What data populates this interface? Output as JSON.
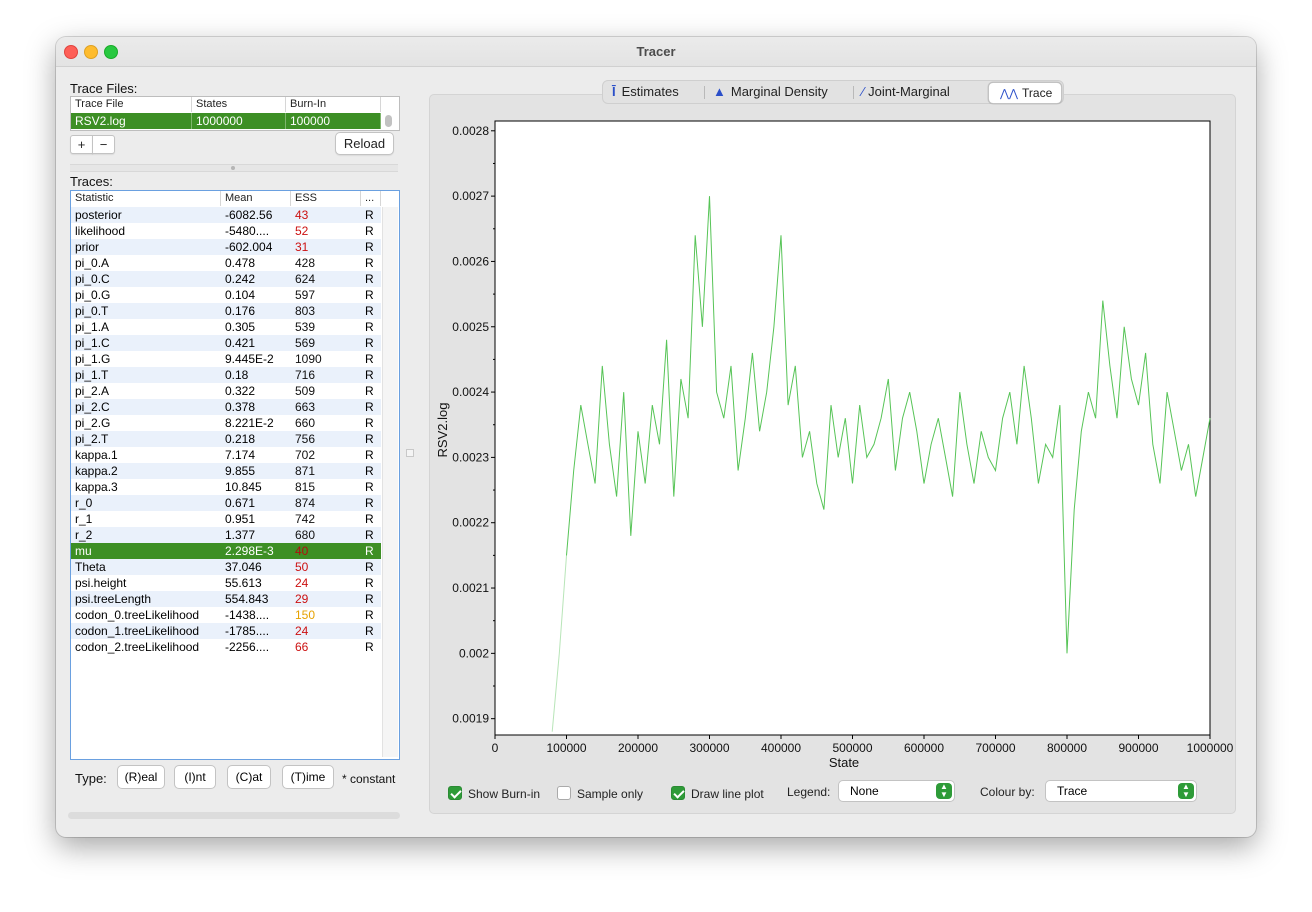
{
  "window": {
    "title": "Tracer"
  },
  "trace_files": {
    "label": "Trace Files:",
    "columns": [
      "Trace File",
      "States",
      "Burn-In"
    ],
    "rows": [
      {
        "file": "RSV2.log",
        "states": "1000000",
        "burnin": "100000"
      }
    ],
    "add_label": "+",
    "remove_label": "−",
    "reload_label": "Reload"
  },
  "traces": {
    "label": "Traces:",
    "columns": [
      "Statistic",
      "Mean",
      "ESS",
      "..."
    ],
    "rows": [
      {
        "stat": "posterior",
        "mean": "-6082.56",
        "ess": "43",
        "type": "R",
        "ess_color": "#cc1111"
      },
      {
        "stat": "likelihood",
        "mean": "-5480....",
        "ess": "52",
        "type": "R",
        "ess_color": "#cc1111"
      },
      {
        "stat": "prior",
        "mean": "-602.004",
        "ess": "31",
        "type": "R",
        "ess_color": "#cc1111"
      },
      {
        "stat": "pi_0.A",
        "mean": "0.478",
        "ess": "428",
        "type": "R",
        "ess_color": "#111111"
      },
      {
        "stat": "pi_0.C",
        "mean": "0.242",
        "ess": "624",
        "type": "R",
        "ess_color": "#111111"
      },
      {
        "stat": "pi_0.G",
        "mean": "0.104",
        "ess": "597",
        "type": "R",
        "ess_color": "#111111"
      },
      {
        "stat": "pi_0.T",
        "mean": "0.176",
        "ess": "803",
        "type": "R",
        "ess_color": "#111111"
      },
      {
        "stat": "pi_1.A",
        "mean": "0.305",
        "ess": "539",
        "type": "R",
        "ess_color": "#111111"
      },
      {
        "stat": "pi_1.C",
        "mean": "0.421",
        "ess": "569",
        "type": "R",
        "ess_color": "#111111"
      },
      {
        "stat": "pi_1.G",
        "mean": "9.445E-2",
        "ess": "1090",
        "type": "R",
        "ess_color": "#111111"
      },
      {
        "stat": "pi_1.T",
        "mean": "0.18",
        "ess": "716",
        "type": "R",
        "ess_color": "#111111"
      },
      {
        "stat": "pi_2.A",
        "mean": "0.322",
        "ess": "509",
        "type": "R",
        "ess_color": "#111111"
      },
      {
        "stat": "pi_2.C",
        "mean": "0.378",
        "ess": "663",
        "type": "R",
        "ess_color": "#111111"
      },
      {
        "stat": "pi_2.G",
        "mean": "8.221E-2",
        "ess": "660",
        "type": "R",
        "ess_color": "#111111"
      },
      {
        "stat": "pi_2.T",
        "mean": "0.218",
        "ess": "756",
        "type": "R",
        "ess_color": "#111111"
      },
      {
        "stat": "kappa.1",
        "mean": "7.174",
        "ess": "702",
        "type": "R",
        "ess_color": "#111111"
      },
      {
        "stat": "kappa.2",
        "mean": "9.855",
        "ess": "871",
        "type": "R",
        "ess_color": "#111111"
      },
      {
        "stat": "kappa.3",
        "mean": "10.845",
        "ess": "815",
        "type": "R",
        "ess_color": "#111111"
      },
      {
        "stat": "r_0",
        "mean": "0.671",
        "ess": "874",
        "type": "R",
        "ess_color": "#111111"
      },
      {
        "stat": "r_1",
        "mean": "0.951",
        "ess": "742",
        "type": "R",
        "ess_color": "#111111"
      },
      {
        "stat": "r_2",
        "mean": "1.377",
        "ess": "680",
        "type": "R",
        "ess_color": "#111111"
      },
      {
        "stat": "mu",
        "mean": "2.298E-3",
        "ess": "40",
        "type": "R",
        "ess_color": "#b0100f",
        "selected": true
      },
      {
        "stat": "Theta",
        "mean": "37.046",
        "ess": "50",
        "type": "R",
        "ess_color": "#cc1111"
      },
      {
        "stat": "psi.height",
        "mean": "55.613",
        "ess": "24",
        "type": "R",
        "ess_color": "#cc1111"
      },
      {
        "stat": "psi.treeLength",
        "mean": "554.843",
        "ess": "29",
        "type": "R",
        "ess_color": "#cc1111"
      },
      {
        "stat": "codon_0.treeLikelihood",
        "mean": "-1438....",
        "ess": "150",
        "type": "R",
        "ess_color": "#e6a100"
      },
      {
        "stat": "codon_1.treeLikelihood",
        "mean": "-1785....",
        "ess": "24",
        "type": "R",
        "ess_color": "#cc1111"
      },
      {
        "stat": "codon_2.treeLikelihood",
        "mean": "-2256....",
        "ess": "66",
        "type": "R",
        "ess_color": "#cc1111"
      }
    ]
  },
  "type_bar": {
    "label": "Type:",
    "buttons": [
      "(R)eal",
      "(I)nt",
      "(C)at",
      "(T)ime"
    ],
    "note": "* constant"
  },
  "tabs": [
    {
      "label": "Estimates",
      "icon": "estimates-icon"
    },
    {
      "label": "Marginal Density",
      "icon": "marginal-density-icon"
    },
    {
      "label": "Joint-Marginal",
      "icon": "joint-marginal-icon"
    },
    {
      "label": "Trace",
      "icon": "trace-icon",
      "selected": true
    }
  ],
  "options": {
    "show_burnin": {
      "label": "Show Burn-in",
      "checked": true
    },
    "sample_only": {
      "label": "Sample only",
      "checked": false
    },
    "draw_line_plot": {
      "label": "Draw line plot",
      "checked": true
    },
    "legend": {
      "label": "Legend:",
      "value": "None"
    },
    "colour_by": {
      "label": "Colour by:",
      "value": "Trace"
    }
  },
  "colors": {
    "accent": "#2e9b38",
    "selection": "#3d8f25",
    "trace_line": "#57c457",
    "burnin_line": "#b8e5b8",
    "row_stripe": "#eaf1fb"
  },
  "chart_data": {
    "type": "line",
    "xlabel": "State",
    "ylabel": "RSV2.log",
    "xlim": [
      0,
      1000000
    ],
    "ylim": [
      0.001875,
      0.002815
    ],
    "x_ticks": [
      0,
      100000,
      200000,
      300000,
      400000,
      500000,
      600000,
      700000,
      800000,
      900000,
      1000000
    ],
    "x_tick_labels": [
      "0",
      "100000",
      "200000",
      "300000",
      "400000",
      "500000",
      "600000",
      "700000",
      "800000",
      "900000",
      "1000000"
    ],
    "y_ticks": [
      0.0019,
      0.002,
      0.0021,
      0.0022,
      0.0023,
      0.0024,
      0.0025,
      0.0026,
      0.0027,
      0.0028
    ],
    "y_tick_labels": [
      "0.0019",
      "0.002",
      "0.0021",
      "0.0022",
      "0.0023",
      "0.0024",
      "0.0025",
      "0.0026",
      "0.0027",
      "0.0028"
    ],
    "burnin": 100000,
    "series": [
      {
        "x": [
          80000,
          90000,
          100000,
          110000,
          120000,
          130000,
          140000,
          150000,
          160000,
          170000,
          180000,
          190000,
          200000,
          210000,
          220000,
          230000,
          240000,
          250000,
          260000,
          270000,
          280000,
          290000,
          300000,
          310000,
          320000,
          330000,
          340000,
          350000,
          360000,
          370000,
          380000,
          390000,
          400000,
          410000,
          420000,
          430000,
          440000,
          450000,
          460000,
          470000,
          480000,
          490000,
          500000,
          510000,
          520000,
          530000,
          540000,
          550000,
          560000,
          570000,
          580000,
          590000,
          600000,
          610000,
          620000,
          630000,
          640000,
          650000,
          660000,
          670000,
          680000,
          690000,
          700000,
          710000,
          720000,
          730000,
          740000,
          750000,
          760000,
          770000,
          780000,
          790000,
          800000,
          810000,
          820000,
          830000,
          840000,
          850000,
          860000,
          870000,
          880000,
          890000,
          900000,
          910000,
          920000,
          930000,
          940000,
          950000,
          960000,
          970000,
          980000,
          990000,
          1000000
        ],
        "y": [
          0.00188,
          0.002,
          0.00215,
          0.00228,
          0.00238,
          0.00232,
          0.00226,
          0.00244,
          0.00232,
          0.00224,
          0.0024,
          0.00218,
          0.00234,
          0.00226,
          0.00238,
          0.00232,
          0.00248,
          0.00224,
          0.00242,
          0.00236,
          0.00264,
          0.0025,
          0.0027,
          0.0024,
          0.00236,
          0.00244,
          0.00228,
          0.00236,
          0.00246,
          0.00234,
          0.0024,
          0.0025,
          0.00264,
          0.00238,
          0.00244,
          0.0023,
          0.00234,
          0.00226,
          0.00222,
          0.00238,
          0.0023,
          0.00236,
          0.00226,
          0.00238,
          0.0023,
          0.00232,
          0.00236,
          0.00242,
          0.00228,
          0.00236,
          0.0024,
          0.00234,
          0.00226,
          0.00232,
          0.00236,
          0.0023,
          0.00224,
          0.0024,
          0.00232,
          0.00226,
          0.00234,
          0.0023,
          0.00228,
          0.00236,
          0.0024,
          0.00232,
          0.00244,
          0.00236,
          0.00226,
          0.00232,
          0.0023,
          0.00238,
          0.002,
          0.00222,
          0.00234,
          0.0024,
          0.00236,
          0.00254,
          0.00244,
          0.00236,
          0.0025,
          0.00242,
          0.00238,
          0.00246,
          0.00232,
          0.00226,
          0.0024,
          0.00234,
          0.00228,
          0.00232,
          0.00224,
          0.0023,
          0.00236
        ]
      }
    ]
  }
}
